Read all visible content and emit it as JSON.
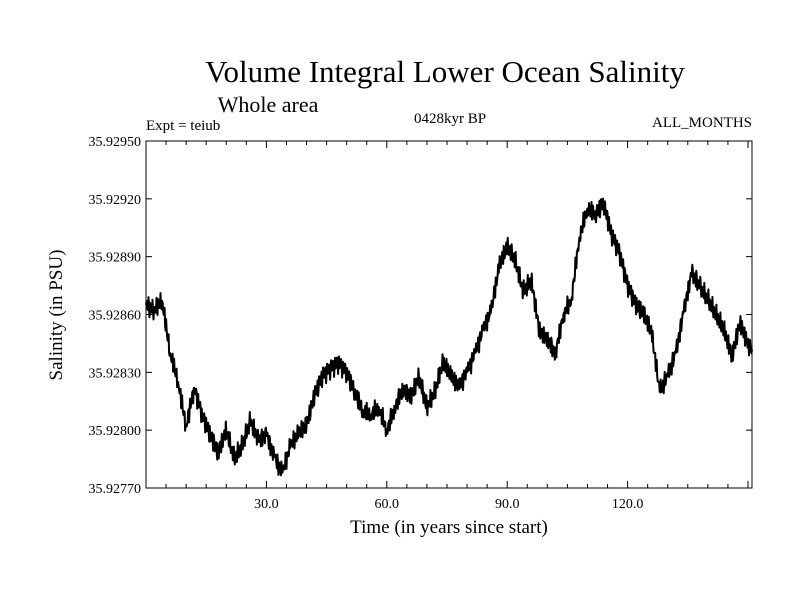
{
  "chart_data": {
    "type": "line",
    "title": "Volume Integral Lower Ocean Salinity",
    "subtitle": "Whole area",
    "expt_label": "Expt = teiub",
    "period_label": "0428kyr BP",
    "months_label": "ALL_MONTHS",
    "xlabel": "Time (in years since start)",
    "ylabel": "Salinity (in PSU)",
    "xlim": [
      0,
      151
    ],
    "ylim": [
      35.9277,
      35.9295
    ],
    "x_ticks": [
      30,
      60,
      90,
      120
    ],
    "x_tick_labels": [
      "30.0",
      "60.0",
      "90.0",
      "120.0"
    ],
    "y_ticks": [
      35.9277,
      35.928,
      35.9283,
      35.9286,
      35.9289,
      35.9292,
      35.9295
    ],
    "y_tick_labels": [
      "35.92770",
      "35.92800",
      "35.92830",
      "35.92860",
      "35.92890",
      "35.92920",
      "35.92950"
    ],
    "series": [
      {
        "name": "Salinity",
        "color": "#000000",
        "x": [
          0,
          2,
          4,
          6,
          8,
          10,
          12,
          14,
          16,
          18,
          20,
          22,
          24,
          26,
          28,
          30,
          32,
          34,
          36,
          38,
          40,
          42,
          44,
          46,
          48,
          50,
          52,
          54,
          56,
          58,
          60,
          62,
          64,
          66,
          68,
          70,
          72,
          74,
          76,
          78,
          80,
          82,
          84,
          86,
          88,
          90,
          92,
          94,
          96,
          98,
          100,
          102,
          104,
          106,
          108,
          110,
          112,
          114,
          116,
          118,
          120,
          122,
          124,
          126,
          128,
          130,
          132,
          134,
          136,
          138,
          140,
          142,
          144,
          146,
          148,
          150,
          151
        ],
        "values": [
          35.92865,
          35.92862,
          35.92867,
          35.9284,
          35.92825,
          35.92802,
          35.92822,
          35.92808,
          35.92798,
          35.92788,
          35.928,
          35.92785,
          35.92792,
          35.92805,
          35.92795,
          35.92798,
          35.92786,
          35.92778,
          35.92792,
          35.92798,
          35.92802,
          35.92818,
          35.92828,
          35.92832,
          35.92835,
          35.9283,
          35.9282,
          35.9281,
          35.92808,
          35.92812,
          35.928,
          35.92812,
          35.92822,
          35.92818,
          35.92828,
          35.92812,
          35.9282,
          35.92835,
          35.92828,
          35.92822,
          35.9283,
          35.9284,
          35.92852,
          35.92862,
          35.92885,
          35.92895,
          35.92888,
          35.92872,
          35.92878,
          35.92852,
          35.92848,
          35.9284,
          35.9286,
          35.92868,
          35.929,
          35.92915,
          35.92912,
          35.92918,
          35.92902,
          35.92892,
          35.92875,
          35.92865,
          35.9286,
          35.9285,
          35.9282,
          35.92828,
          35.9284,
          35.92862,
          35.92882,
          35.92875,
          35.92868,
          35.9286,
          35.92852,
          35.92838,
          35.92856,
          35.92845,
          35.92842
        ]
      }
    ]
  }
}
